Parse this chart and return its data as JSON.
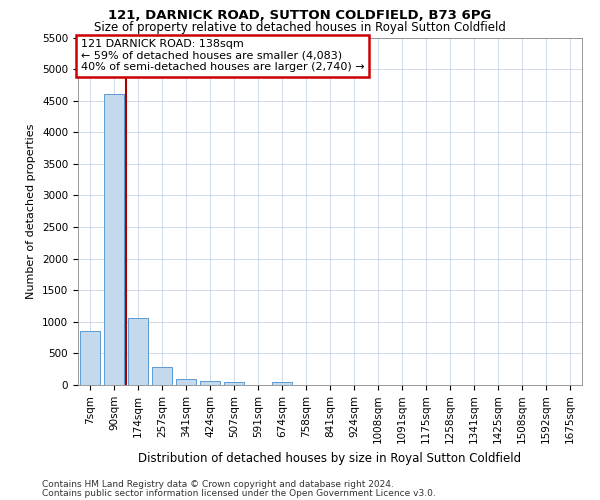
{
  "title_line1": "121, DARNICK ROAD, SUTTON COLDFIELD, B73 6PG",
  "title_line2": "Size of property relative to detached houses in Royal Sutton Coldfield",
  "xlabel": "Distribution of detached houses by size in Royal Sutton Coldfield",
  "ylabel": "Number of detached properties",
  "footnote1": "Contains HM Land Registry data © Crown copyright and database right 2024.",
  "footnote2": "Contains public sector information licensed under the Open Government Licence v3.0.",
  "annotation_line1": "121 DARNICK ROAD: 138sqm",
  "annotation_line2": "← 59% of detached houses are smaller (4,083)",
  "annotation_line3": "40% of semi-detached houses are larger (2,740) →",
  "bar_color": "#c5d9ed",
  "bar_edge_color": "#5b9bd5",
  "vline_color": "#aa0000",
  "annotation_box_edgecolor": "#cc0000",
  "background_color": "#ffffff",
  "grid_color": "#c8d4e8",
  "categories": [
    "7sqm",
    "90sqm",
    "174sqm",
    "257sqm",
    "341sqm",
    "424sqm",
    "507sqm",
    "591sqm",
    "674sqm",
    "758sqm",
    "841sqm",
    "924sqm",
    "1008sqm",
    "1091sqm",
    "1175sqm",
    "1258sqm",
    "1341sqm",
    "1425sqm",
    "1508sqm",
    "1592sqm",
    "1675sqm"
  ],
  "values": [
    850,
    4600,
    1060,
    280,
    90,
    70,
    55,
    0,
    55,
    0,
    0,
    0,
    0,
    0,
    0,
    0,
    0,
    0,
    0,
    0,
    0
  ],
  "ylim": [
    0,
    5500
  ],
  "yticks": [
    0,
    500,
    1000,
    1500,
    2000,
    2500,
    3000,
    3500,
    4000,
    4500,
    5000,
    5500
  ],
  "vline_x": 1.5,
  "title1_fontsize": 9.5,
  "title2_fontsize": 8.5,
  "ylabel_fontsize": 8,
  "xlabel_fontsize": 8.5,
  "tick_fontsize": 7.5,
  "annot_fontsize": 8.0,
  "footnote_fontsize": 6.5
}
